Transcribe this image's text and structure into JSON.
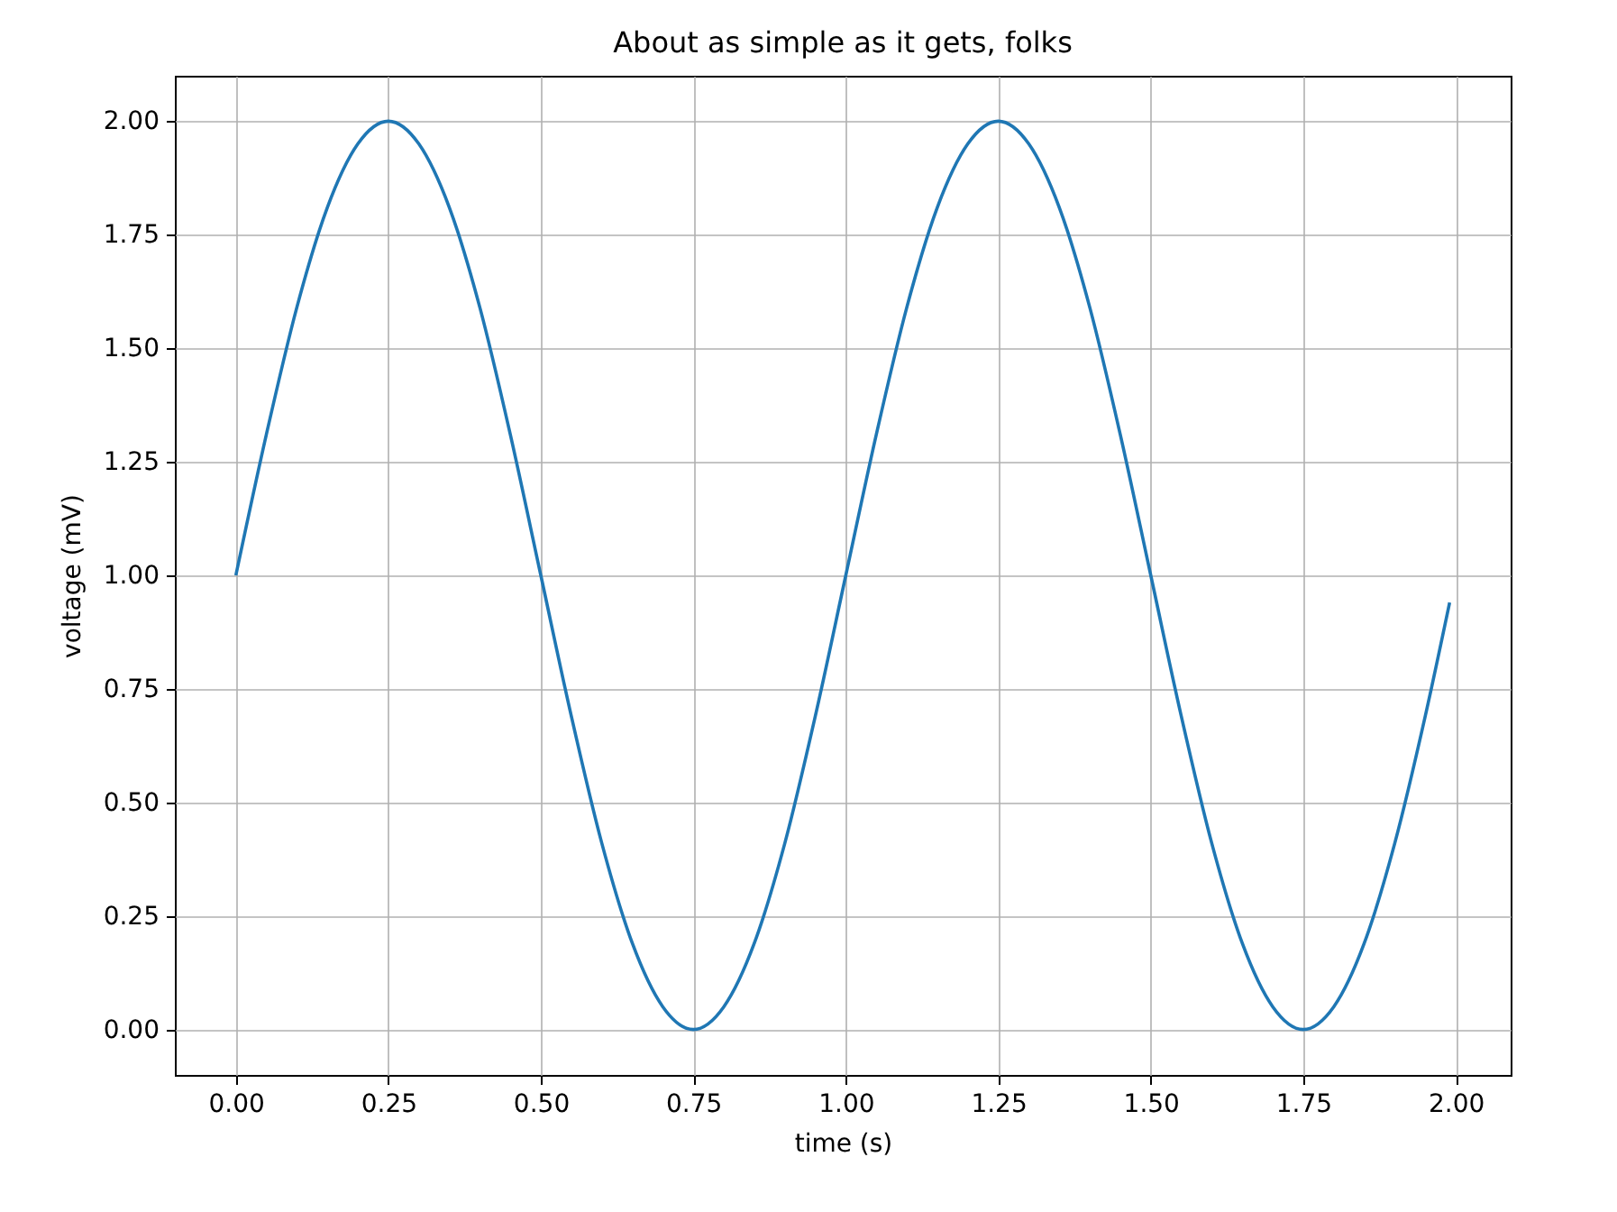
{
  "chart_data": {
    "type": "line",
    "title": "About as simple as it gets, folks",
    "xlabel": "time (s)",
    "ylabel": "voltage (mV)",
    "x": [
      0,
      0.05,
      0.1,
      0.15,
      0.2,
      0.25,
      0.3,
      0.35,
      0.4,
      0.45,
      0.5,
      0.55,
      0.6,
      0.65,
      0.7,
      0.75,
      0.8,
      0.85,
      0.9,
      0.95,
      1.0,
      1.05,
      1.1,
      1.15,
      1.2,
      1.25,
      1.3,
      1.35,
      1.4,
      1.45,
      1.5,
      1.55,
      1.6,
      1.65,
      1.7,
      1.75,
      1.8,
      1.85,
      1.9,
      1.95,
      1.99
    ],
    "series": [
      {
        "color": "#1f77b4",
        "values": [
          1,
          1.31,
          1.59,
          1.81,
          1.95,
          2,
          1.95,
          1.81,
          1.59,
          1.31,
          1,
          0.69,
          0.41,
          0.19,
          0.05,
          0,
          0.05,
          0.19,
          0.41,
          0.69,
          1,
          1.31,
          1.59,
          1.81,
          1.95,
          2,
          1.95,
          1.81,
          1.59,
          1.31,
          1,
          0.69,
          0.41,
          0.19,
          0.05,
          0,
          0.05,
          0.19,
          0.41,
          0.69,
          0.94
        ]
      }
    ],
    "xlim": [
      -0.1,
      2.09
    ],
    "ylim": [
      -0.1,
      2.1
    ],
    "xticks": [
      {
        "value": 0,
        "label": "0.00"
      },
      {
        "value": 0.25,
        "label": "0.25"
      },
      {
        "value": 0.5,
        "label": "0.50"
      },
      {
        "value": 0.75,
        "label": "0.75"
      },
      {
        "value": 1,
        "label": "1.00"
      },
      {
        "value": 1.25,
        "label": "1.25"
      },
      {
        "value": 1.5,
        "label": "1.50"
      },
      {
        "value": 1.75,
        "label": "1.75"
      },
      {
        "value": 2,
        "label": "2.00"
      }
    ],
    "yticks": [
      {
        "value": 0,
        "label": "0.00"
      },
      {
        "value": 0.25,
        "label": "0.25"
      },
      {
        "value": 0.5,
        "label": "0.50"
      },
      {
        "value": 0.75,
        "label": "0.75"
      },
      {
        "value": 1,
        "label": "1.00"
      },
      {
        "value": 1.25,
        "label": "1.25"
      },
      {
        "value": 1.5,
        "label": "1.50"
      },
      {
        "value": 1.75,
        "label": "1.75"
      },
      {
        "value": 2,
        "label": "2.00"
      }
    ],
    "grid": true
  }
}
